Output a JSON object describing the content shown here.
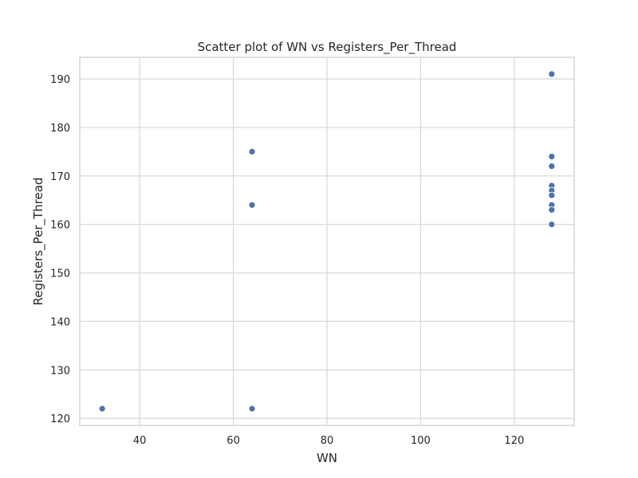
{
  "chart_data": {
    "type": "scatter",
    "title": "Scatter plot of WN vs Registers_Per_Thread",
    "xlabel": "WN",
    "ylabel": "Registers_Per_Thread",
    "xlim": [
      27.2,
      132.8
    ],
    "ylim": [
      118.55,
      194.45
    ],
    "xticks": [
      40,
      60,
      80,
      100,
      120
    ],
    "yticks": [
      120,
      130,
      140,
      150,
      160,
      170,
      180,
      190
    ],
    "grid": true,
    "point_color": "#4c72b0",
    "points": [
      {
        "x": 32,
        "y": 122
      },
      {
        "x": 64,
        "y": 122
      },
      {
        "x": 64,
        "y": 164
      },
      {
        "x": 64,
        "y": 175
      },
      {
        "x": 128,
        "y": 191
      },
      {
        "x": 128,
        "y": 174
      },
      {
        "x": 128,
        "y": 172
      },
      {
        "x": 128,
        "y": 168
      },
      {
        "x": 128,
        "y": 167
      },
      {
        "x": 128,
        "y": 166
      },
      {
        "x": 128,
        "y": 164
      },
      {
        "x": 128,
        "y": 163
      },
      {
        "x": 128,
        "y": 160
      }
    ]
  }
}
